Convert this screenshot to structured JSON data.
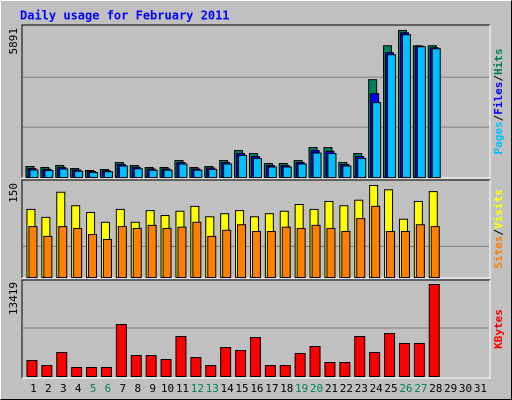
{
  "chart_data": [
    {
      "type": "bar",
      "title": "Daily usage for February 2011",
      "ylim": [
        0,
        5891
      ],
      "yticks": [
        5891
      ],
      "grid_lines": [
        2000,
        4000
      ],
      "legend_separator": "/",
      "series": [
        {
          "name": "Hits",
          "color": "#00805c",
          "values": [
            440,
            400,
            480,
            360,
            280,
            320,
            600,
            480,
            400,
            400,
            680,
            400,
            440,
            680,
            1080,
            960,
            560,
            560,
            680,
            1200,
            1200,
            600,
            960,
            3920,
            5280,
            5891,
            5280,
            5280,
            null,
            null,
            null
          ]
        },
        {
          "name": "Files",
          "color": "#0000ff",
          "values": [
            360,
            330,
            400,
            300,
            240,
            270,
            520,
            410,
            340,
            340,
            600,
            340,
            380,
            600,
            960,
            840,
            480,
            480,
            600,
            1080,
            1050,
            520,
            840,
            3360,
            5000,
            5800,
            5260,
            5200,
            null,
            null,
            null
          ]
        },
        {
          "name": "Pages",
          "color": "#00c0ff",
          "values": [
            300,
            280,
            340,
            250,
            200,
            230,
            460,
            350,
            290,
            290,
            540,
            290,
            320,
            540,
            880,
            760,
            420,
            420,
            540,
            980,
            960,
            460,
            760,
            3000,
            4920,
            5720,
            5240,
            5160,
            null,
            null,
            null
          ]
        }
      ]
    },
    {
      "type": "bar",
      "ylim": [
        0,
        150
      ],
      "yticks": [
        150
      ],
      "grid_lines": [
        50
      ],
      "legend_separator": "/",
      "series": [
        {
          "name": "Visits",
          "color": "#ffff00",
          "values": [
            111,
            98,
            139,
            117,
            106,
            90,
            111,
            90,
            109,
            101,
            108,
            116,
            99,
            104,
            109,
            99,
            104,
            108,
            119,
            111,
            124,
            117,
            126,
            150,
            143,
            95,
            124,
            140,
            null,
            null,
            null
          ]
        },
        {
          "name": "Sites",
          "color": "#ff8000",
          "values": [
            83,
            67,
            83,
            80,
            70,
            62,
            83,
            80,
            85,
            80,
            82,
            90,
            67,
            77,
            86,
            75,
            75,
            82,
            80,
            85,
            80,
            75,
            96,
            116,
            75,
            75,
            86,
            83,
            null,
            null,
            null
          ]
        }
      ]
    },
    {
      "type": "bar",
      "ylim": [
        0,
        13419
      ],
      "yticks": [
        13419
      ],
      "grid_lines": [
        7000
      ],
      "categories": [
        "1",
        "2",
        "3",
        "4",
        "5",
        "6",
        "7",
        "8",
        "9",
        "10",
        "11",
        "12",
        "13",
        "14",
        "15",
        "16",
        "17",
        "18",
        "19",
        "20",
        "21",
        "22",
        "23",
        "24",
        "25",
        "26",
        "27",
        "28",
        "29",
        "30",
        "31"
      ],
      "category_colors": [
        "#000000",
        "#000000",
        "#000000",
        "#000000",
        "#00805c",
        "#00805c",
        "#000000",
        "#000000",
        "#000000",
        "#000000",
        "#000000",
        "#00805c",
        "#00805c",
        "#000000",
        "#000000",
        "#000000",
        "#000000",
        "#000000",
        "#00805c",
        "#00805c",
        "#000000",
        "#000000",
        "#000000",
        "#000000",
        "#000000",
        "#00805c",
        "#00805c",
        "#000000",
        "#000000",
        "#000000",
        "#000000"
      ],
      "series": [
        {
          "name": "KBytes",
          "color": "#ff0000",
          "values": [
            2330,
            1600,
            3500,
            1310,
            1310,
            1310,
            7580,
            3060,
            3060,
            2480,
            5830,
            2770,
            1600,
            4230,
            3790,
            5690,
            1600,
            1600,
            3350,
            4370,
            2040,
            2040,
            5830,
            3500,
            6270,
            4810,
            4810,
            13419,
            null,
            null,
            null
          ]
        }
      ]
    }
  ]
}
